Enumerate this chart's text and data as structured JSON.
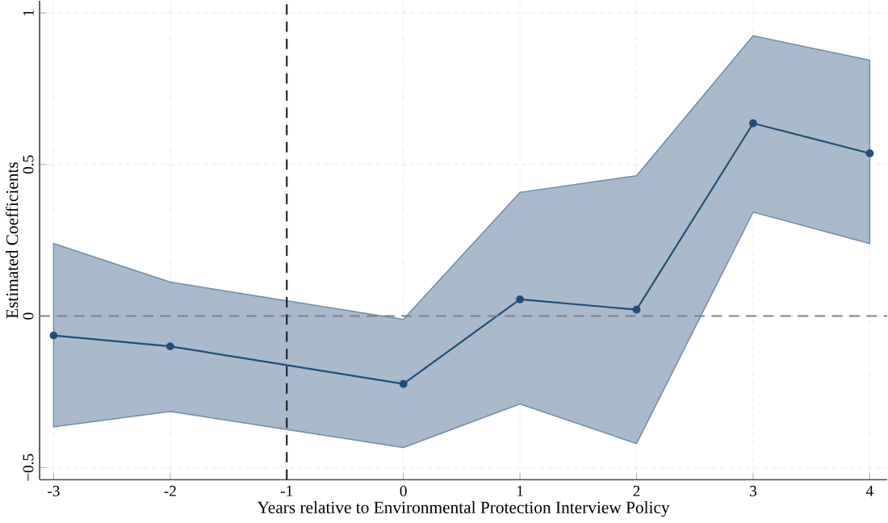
{
  "chart_data": {
    "type": "line",
    "xlabel": "Years relative to Environmental Protection Interview Policy",
    "ylabel": "Estimated Coefficients",
    "x": [
      -3,
      -2,
      0,
      1,
      2,
      3,
      4
    ],
    "series": [
      {
        "color": "#1f4e79",
        "values": [
          -0.064,
          -0.1,
          -0.224,
          0.055,
          0.021,
          0.636,
          0.537
        ],
        "lower": [
          -0.366,
          -0.315,
          -0.434,
          -0.29,
          -0.421,
          0.343,
          0.239
        ],
        "upper": [
          0.239,
          0.112,
          -0.011,
          0.408,
          0.463,
          0.925,
          0.844
        ]
      }
    ],
    "xlim": [
      -3.12,
      4.15
    ],
    "ylim": [
      -0.54,
      1.04
    ],
    "xticks": [
      -3,
      -2,
      -1,
      0,
      1,
      2,
      3,
      4
    ],
    "yticks": [
      {
        "value": -0.5,
        "label": "−0.5"
      },
      0,
      0.5,
      1
    ],
    "ref_lines": [
      {
        "axis": "y",
        "value": 0,
        "color": "#808080",
        "line_style": "dashed"
      },
      {
        "axis": "x",
        "value": -1,
        "color": "#202020",
        "line_style": "dashed"
      }
    ],
    "grid": true,
    "marker": "circle",
    "line_style": "solid"
  }
}
